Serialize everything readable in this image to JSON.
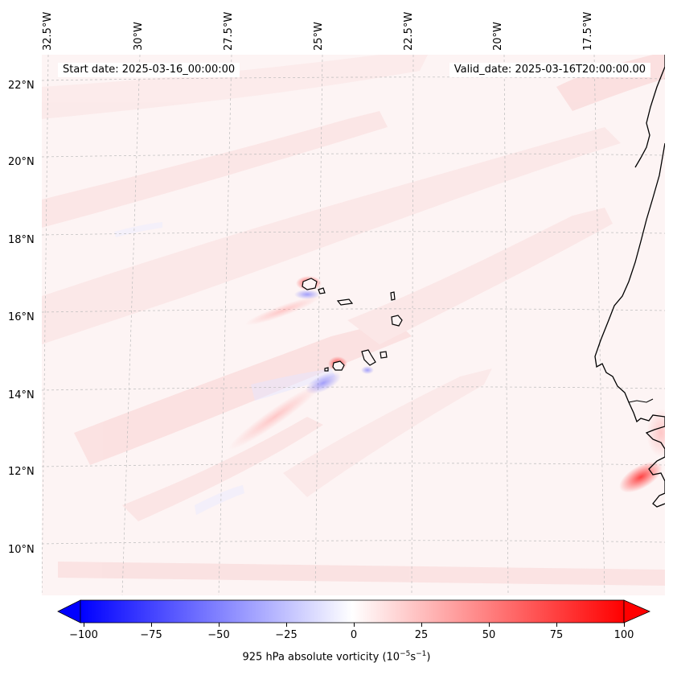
{
  "header": {
    "start_date": "Start date: 2025-03-16_00:00:00",
    "valid_date": "Valid_date: 2025-03-16T20:00:00.00"
  },
  "map": {
    "projection": "lambert-conformal",
    "region": "Eastern Atlantic / Cabo Verde / West African coast",
    "lon_labels": [
      "32.5°W",
      "30°W",
      "27.5°W",
      "25°W",
      "22.5°W",
      "20°W",
      "17.5°W"
    ],
    "lat_labels": [
      "22°N",
      "20°N",
      "18°N",
      "16°N",
      "14°N",
      "12°N",
      "10°N"
    ],
    "gridlines": true,
    "field": "925 hPa absolute vorticity",
    "colors": {
      "negative": "#0000ff",
      "neutral": "#ffffff",
      "positive": "#ff0000",
      "background_field": "#fdf3f3",
      "coastline": "#000000",
      "gridline": "#bbbbbb"
    }
  },
  "colorbar": {
    "label_prefix": "925 hPa absolute vorticity (10",
    "label_exp1": "−5",
    "label_mid": "s",
    "label_exp2": "−1",
    "label_suffix": ")",
    "ticks": [
      "−100",
      "−75",
      "−50",
      "−25",
      "0",
      "25",
      "50",
      "75",
      "100"
    ],
    "tick_values": [
      -100,
      -75,
      -50,
      -25,
      0,
      25,
      50,
      75,
      100
    ],
    "min": -100,
    "max": 100,
    "extend": "both",
    "levels": 40
  }
}
